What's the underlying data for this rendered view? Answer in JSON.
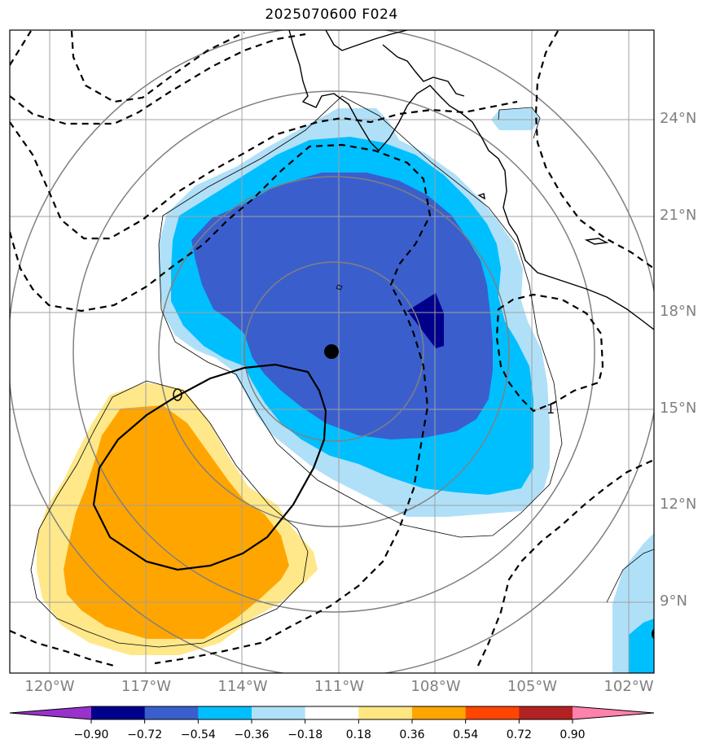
{
  "title": "2025070600 F024",
  "lat_labels": [
    {
      "text": "24°N",
      "lat": 24
    },
    {
      "text": "21°N",
      "lat": 21
    },
    {
      "text": "18°N",
      "lat": 18
    },
    {
      "text": "15°N",
      "lat": 15
    },
    {
      "text": "12°N",
      "lat": 12
    },
    {
      "text": "9°N",
      "lat": 9
    }
  ],
  "lon_labels": [
    {
      "text": "120°W",
      "lon": -120
    },
    {
      "text": "117°W",
      "lon": -117
    },
    {
      "text": "114°W",
      "lon": -114
    },
    {
      "text": "111°W",
      "lon": -111
    },
    {
      "text": "108°W",
      "lon": -108
    },
    {
      "text": "105°W",
      "lon": -105
    },
    {
      "text": "102°W",
      "lon": -102
    }
  ],
  "contour_label": "1",
  "colorbar": {
    "ticks": [
      "−0.90",
      "−0.72",
      "−0.54",
      "−0.36",
      "−0.18",
      "0.18",
      "0.36",
      "0.54",
      "0.72",
      "0.90"
    ],
    "colors": [
      "#9932cc",
      "#00008b",
      "#3a5fcd",
      "#00bfff",
      "#b0e0f8",
      "#ffffff",
      "#ffe680",
      "#ffa500",
      "#ff4500",
      "#b22222",
      "#ff82ab"
    ]
  },
  "fill_colors": {
    "pos_light": "#ffe88a",
    "pos_mid": "#ffa500",
    "neg_light": "#b0e0f8",
    "neg_mid": "#00bfff",
    "neg_strong": "#3a5fcd",
    "neg_max": "#00008b"
  },
  "center_marker": {
    "lon": -111.2,
    "lat": 16.8
  }
}
